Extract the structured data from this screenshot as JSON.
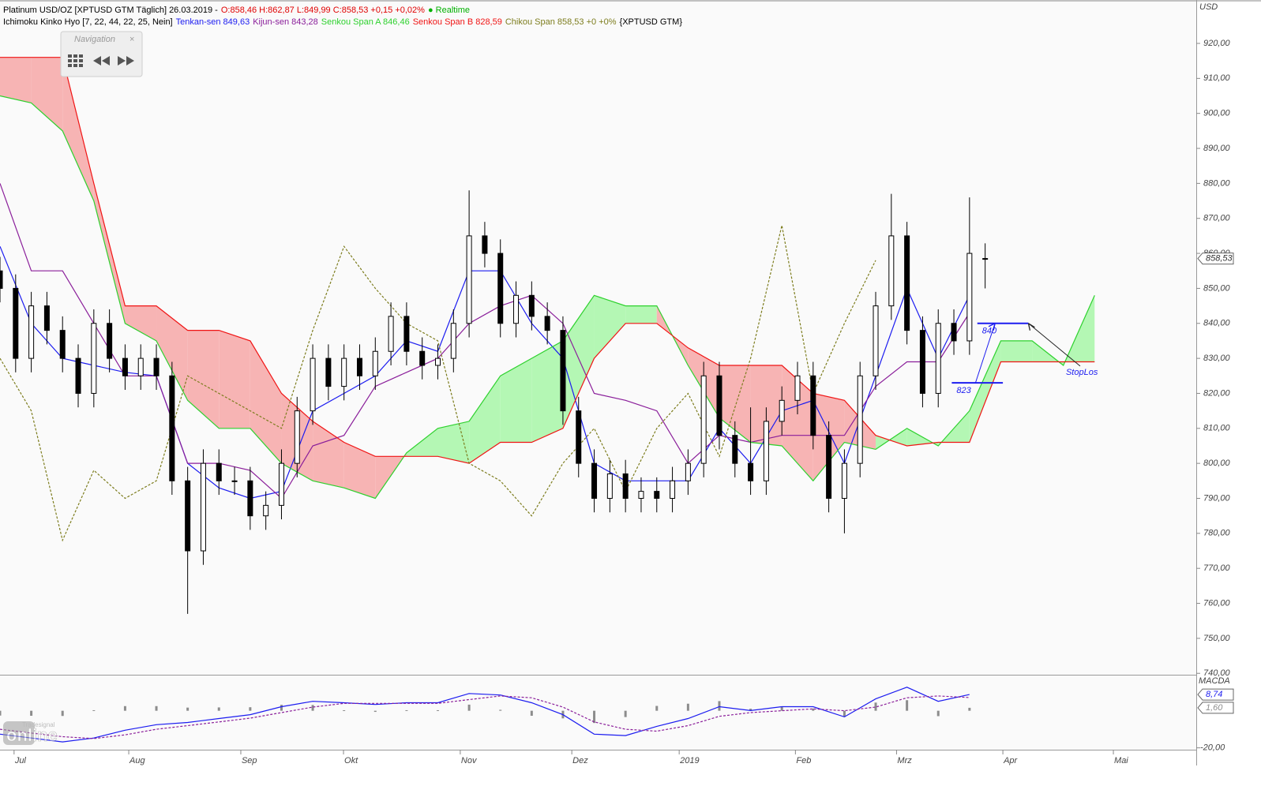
{
  "header": {
    "title": "Platinum USD/OZ [XPTUSD GTM Täglich] 26.03.2019 -",
    "quote": "O:858,46 H:862,87 L:849,99 C:858,53 +0,15 +0,02%",
    "status": "● Realtime",
    "indicator": "Ichimoku Kinko Hyo [7, 22, 44, 22, 25, Nein]",
    "tenkan": "Tenkan-sen 849,63",
    "kijun": "Kijun-sen 843,28",
    "span_a": "Senkou Span A 846,46",
    "span_b": "Senkou Span B 828,59",
    "chikou": "Chikou Span 858,53 +0 +0%",
    "symbol": "{XPTUSD GTM}"
  },
  "navigation": {
    "title": "Navigation"
  },
  "watermark": {
    "brand": "Tradesignal",
    "word": "online"
  },
  "chart_data": [
    {
      "type": "candlestick",
      "y_unit": "USD",
      "xlim": [
        0,
        229.5
      ],
      "ylim": [
        739.6,
        932.4
      ],
      "xticks": [
        {
          "value": 2.7,
          "label": "Jul"
        },
        {
          "value": 24.7,
          "label": "Aug"
        },
        {
          "value": 46.2,
          "label": "Sep"
        },
        {
          "value": 65.9,
          "label": "Okt"
        },
        {
          "value": 88.3,
          "label": "Nov"
        },
        {
          "value": 109.7,
          "label": "Dez"
        },
        {
          "value": 130.3,
          "label": "2019"
        },
        {
          "value": 152.6,
          "label": "Feb"
        },
        {
          "value": 172,
          "label": "Mrz"
        },
        {
          "value": 192.4,
          "label": "Apr"
        },
        {
          "value": 213.6,
          "label": "Mai"
        }
      ],
      "yticks": [
        {
          "value": 740,
          "label": "740,00"
        },
        {
          "value": 750,
          "label": "750,00"
        },
        {
          "value": 760,
          "label": "760,00"
        },
        {
          "value": 770,
          "label": "770,00"
        },
        {
          "value": 780,
          "label": "780,00"
        },
        {
          "value": 790,
          "label": "790,00"
        },
        {
          "value": 800,
          "label": "800,00"
        },
        {
          "value": 810,
          "label": "810,00"
        },
        {
          "value": 820,
          "label": "820,00"
        },
        {
          "value": 830,
          "label": "830,00"
        },
        {
          "value": 840,
          "label": "840,00"
        },
        {
          "value": 850,
          "label": "850,00"
        },
        {
          "value": 860,
          "label": "860,00"
        },
        {
          "value": 870,
          "label": "870,00"
        },
        {
          "value": 880,
          "label": "880,00"
        },
        {
          "value": 890,
          "label": "890,00"
        },
        {
          "value": 900,
          "label": "900,00"
        },
        {
          "value": 910,
          "label": "910,00"
        },
        {
          "value": 920,
          "label": "920,00"
        }
      ],
      "candles": {
        "x": [
          0,
          3,
          6,
          9,
          12,
          15,
          18,
          21,
          24,
          27,
          30,
          33,
          36,
          39,
          42,
          45,
          48,
          51,
          54,
          57,
          60,
          63,
          66,
          69,
          72,
          75,
          78,
          81,
          84,
          87,
          90,
          93,
          96,
          99,
          102,
          105,
          108,
          111,
          114,
          117,
          120,
          123,
          126,
          129,
          132,
          135,
          138,
          141,
          144,
          147,
          150,
          153,
          156,
          159,
          162,
          165,
          168,
          171,
          174,
          177,
          180,
          183,
          186,
          189
        ],
        "open": [
          855,
          850,
          830,
          845,
          838,
          830,
          820,
          840,
          830,
          825,
          830,
          825,
          795,
          775,
          800,
          795,
          795,
          785,
          788,
          800,
          815,
          830,
          822,
          830,
          825,
          832,
          842,
          832,
          828,
          830,
          840,
          865,
          860,
          840,
          848,
          842,
          838,
          815,
          800,
          790,
          797,
          790,
          792,
          790,
          795,
          800,
          825,
          808,
          800,
          795,
          812,
          818,
          825,
          808,
          790,
          800,
          825,
          845,
          865,
          838,
          820,
          840,
          835,
          858.46
        ],
        "high": [
          859,
          854,
          849,
          849,
          842,
          834,
          844,
          844,
          834,
          834,
          834,
          829,
          799,
          804,
          804,
          799,
          799,
          792,
          804,
          819,
          834,
          834,
          834,
          834,
          836,
          846,
          846,
          836,
          834,
          844,
          878,
          869,
          864,
          852,
          852,
          846,
          842,
          819,
          804,
          801,
          801,
          796,
          796,
          799,
          804,
          829,
          829,
          812,
          816,
          816,
          822,
          829,
          829,
          812,
          804,
          829,
          849,
          877,
          869,
          842,
          844,
          844,
          876,
          862.87
        ],
        "low": [
          846,
          826,
          826,
          834,
          826,
          816,
          816,
          826,
          821,
          821,
          821,
          791,
          757,
          771,
          791,
          791,
          781,
          781,
          784,
          796,
          811,
          818,
          818,
          821,
          821,
          828,
          828,
          824,
          824,
          826,
          836,
          856,
          836,
          836,
          838,
          834,
          811,
          796,
          786,
          786,
          786,
          786,
          786,
          786,
          791,
          796,
          804,
          796,
          791,
          791,
          808,
          814,
          804,
          786,
          780,
          796,
          821,
          841,
          834,
          816,
          816,
          831,
          831,
          849.99
        ],
        "close": [
          850,
          830,
          845,
          838,
          830,
          820,
          840,
          830,
          825,
          830,
          825,
          795,
          775,
          800,
          795,
          795,
          785,
          788,
          800,
          815,
          830,
          822,
          830,
          825,
          832,
          842,
          832,
          828,
          830,
          840,
          865,
          860,
          840,
          848,
          842,
          838,
          815,
          800,
          790,
          797,
          790,
          792,
          790,
          795,
          800,
          825,
          808,
          800,
          795,
          812,
          818,
          825,
          808,
          790,
          800,
          825,
          845,
          865,
          838,
          820,
          840,
          835,
          860,
          858.53
        ],
        "up_color": "#ffffff",
        "down_color": "#000000"
      },
      "x": [
        0,
        6,
        12,
        18,
        24,
        30,
        36,
        42,
        48,
        54,
        60,
        66,
        72,
        78,
        84,
        90,
        96,
        102,
        108,
        114,
        120,
        126,
        132,
        138,
        144,
        150,
        156,
        162,
        168,
        174,
        180,
        186,
        192,
        198,
        204,
        210
      ],
      "series": [
        {
          "color": "#1c1cf0",
          "values": [
            862,
            840,
            830,
            828,
            826,
            825,
            800,
            793,
            790,
            792,
            815,
            820,
            825,
            835,
            832,
            855,
            855,
            840,
            830,
            800,
            795,
            795,
            795,
            810,
            800,
            815,
            818,
            800,
            825,
            850,
            830,
            848,
            null,
            null,
            null,
            null
          ]
        },
        {
          "color": "#8a1e9a",
          "values": [
            880,
            855,
            855,
            840,
            825,
            825,
            800,
            800,
            798,
            790,
            805,
            808,
            822,
            826,
            830,
            840,
            845,
            848,
            840,
            820,
            818,
            815,
            800,
            808,
            806,
            808,
            808,
            808,
            822,
            829,
            829,
            843,
            null,
            null,
            null,
            null
          ]
        },
        {
          "color": "#2ed12e",
          "values": [
            905,
            903,
            895,
            875,
            840,
            835,
            818,
            810,
            810,
            800,
            795,
            793,
            790,
            803,
            810,
            812,
            825,
            830,
            835,
            848,
            845,
            845,
            828,
            813,
            806,
            805,
            795,
            806,
            804,
            810,
            805,
            815,
            835,
            835,
            828,
            848
          ]
        },
        {
          "color": "#f01414",
          "values": [
            916,
            916,
            916,
            880,
            845,
            845,
            838,
            838,
            835,
            820,
            812,
            806,
            802,
            802,
            802,
            800,
            806,
            806,
            810,
            830,
            840,
            840,
            833,
            828,
            828,
            828,
            820,
            818,
            808,
            805,
            806,
            806,
            829,
            829,
            829,
            829
          ]
        },
        {
          "color": "#7d7d1e",
          "dashed": true,
          "values": [
            830,
            815,
            778,
            798,
            790,
            795,
            825,
            820,
            815,
            810,
            838,
            862,
            850,
            840,
            835,
            800,
            795,
            785,
            800,
            810,
            792,
            810,
            820,
            802,
            830,
            868,
            820,
            840,
            858,
            null,
            null,
            null,
            null,
            null,
            null,
            null
          ]
        }
      ],
      "cloud": {
        "up": "#b4f7b4",
        "down": "#f7b4b4"
      },
      "last_price": {
        "value": 858.53,
        "label": "858,53"
      },
      "levels": [
        {
          "value": 840,
          "label": "840",
          "x": [
            187.5,
            197.3
          ],
          "color": "#1c1cf0"
        },
        {
          "value": 823,
          "label": "823",
          "x": [
            182.6,
            192.4
          ],
          "color": "#1c1cf0"
        }
      ],
      "annotations": [
        {
          "text": "StopLos",
          "x": 204.5,
          "y": 826
        }
      ]
    },
    {
      "type": "line",
      "title": "MACDA",
      "xlim": [
        0,
        229.5
      ],
      "ylim": [
        -21,
        19
      ],
      "yticks": [
        {
          "value": -20,
          "label": "-20,00"
        }
      ],
      "x": [
        0,
        6,
        12,
        18,
        24,
        30,
        36,
        42,
        48,
        54,
        60,
        66,
        72,
        78,
        84,
        90,
        96,
        102,
        108,
        114,
        120,
        126,
        132,
        138,
        144,
        150,
        156,
        162,
        168,
        174,
        180,
        186
      ],
      "series": [
        {
          "color": "#1c1cf0",
          "values": [
            -12.6,
            -14.7,
            -16.8,
            -14.7,
            -10.5,
            -7.5,
            -6.3,
            -4.2,
            -2.1,
            2.2,
            5.1,
            4.3,
            3.4,
            4.3,
            4.3,
            9.3,
            8.5,
            4.3,
            -2.1,
            -12.6,
            -13.4,
            -8.4,
            -4.2,
            2.2,
            0.1,
            2.2,
            2.2,
            -3.3,
            6.4,
            12.7,
            5.1,
            8.74
          ]
        },
        {
          "color": "#8a1e9a",
          "dashed": true,
          "values": [
            -10,
            -12,
            -14,
            -15,
            -13,
            -10,
            -8,
            -6,
            -4,
            -1,
            2,
            4,
            4,
            4,
            4,
            6,
            8,
            7,
            2,
            -6,
            -10,
            -11,
            -8,
            -3,
            -1,
            0,
            1,
            0,
            2,
            7,
            8,
            7.14
          ]
        }
      ],
      "histogram": {
        "color": "#8c8c8c",
        "values": [
          -2.6,
          -2.7,
          -2.8,
          0.3,
          2.5,
          2.5,
          1.7,
          1.8,
          1.9,
          3.2,
          3.1,
          0.3,
          -0.6,
          0.3,
          0.3,
          3.3,
          0.5,
          -2.7,
          -4.1,
          -6.6,
          -3.4,
          2.6,
          3.8,
          5.2,
          1.1,
          2.2,
          1.2,
          -3.3,
          4.4,
          5.7,
          -2.9,
          1.6
        ]
      },
      "markers": [
        {
          "value": 8.74,
          "label": "8,74",
          "color": "#1c1cf0"
        },
        {
          "value": 1.6,
          "label": "1,60",
          "color": "#8c8c8c"
        }
      ]
    }
  ]
}
